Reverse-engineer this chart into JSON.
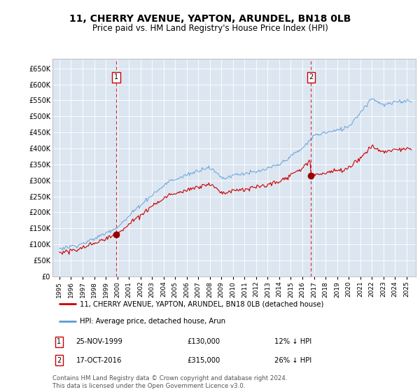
{
  "title": "11, CHERRY AVENUE, YAPTON, ARUNDEL, BN18 0LB",
  "subtitle": "Price paid vs. HM Land Registry's House Price Index (HPI)",
  "title_fontsize": 10,
  "subtitle_fontsize": 8.5,
  "ylabel_ticks": [
    "£0",
    "£50K",
    "£100K",
    "£150K",
    "£200K",
    "£250K",
    "£300K",
    "£350K",
    "£400K",
    "£450K",
    "£500K",
    "£550K",
    "£600K",
    "£650K"
  ],
  "ytick_vals": [
    0,
    50000,
    100000,
    150000,
    200000,
    250000,
    300000,
    350000,
    400000,
    450000,
    500000,
    550000,
    600000,
    650000
  ],
  "ylim": [
    0,
    680000
  ],
  "legend_labels": [
    "11, CHERRY AVENUE, YAPTON, ARUNDEL, BN18 0LB (detached house)",
    "HPI: Average price, detached house, Arun"
  ],
  "legend_colors": [
    "#cc0000",
    "#6699cc"
  ],
  "sale1_year": 1999.9,
  "sale1_price": 130000,
  "sale2_year": 2016.79,
  "sale2_price": 315000,
  "footer": "Contains HM Land Registry data © Crown copyright and database right 2024.\nThis data is licensed under the Open Government Licence v3.0.",
  "outer_bg_color": "#ffffff",
  "plot_bg_color": "#dce6f1",
  "red_line_color": "#cc0000",
  "blue_line_color": "#5b9bd5",
  "grid_color": "#ffffff",
  "sale_marker_color": "#990000",
  "vline_color": "#cc0000"
}
